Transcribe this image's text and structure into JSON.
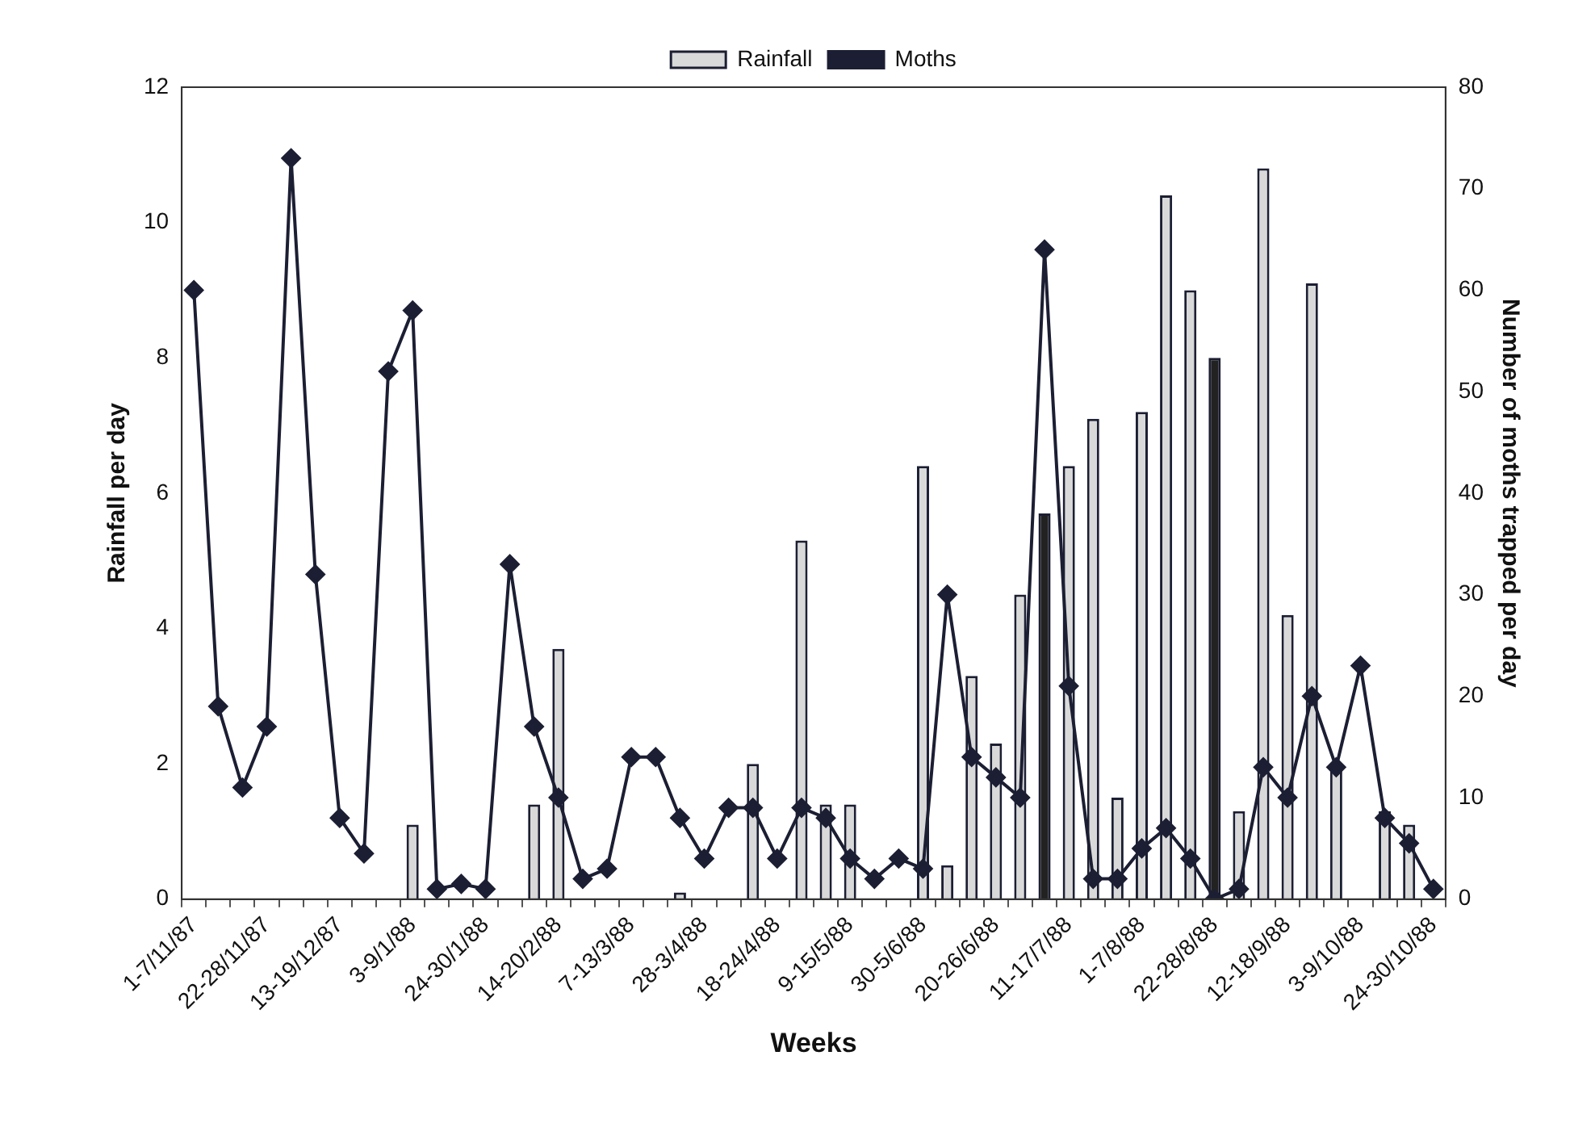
{
  "chart_data": {
    "type": "bar",
    "xlabel": "Weeks",
    "ylabel": "Rainfall per day",
    "y2label": "Number of moths trapped per day",
    "categories": [
      "1-7/11/87",
      null,
      null,
      "22-28/11/87",
      null,
      null,
      "13-19/12/87",
      null,
      null,
      "3-9/1/88",
      null,
      null,
      "24-30/1/88",
      null,
      null,
      "14-20/2/88",
      null,
      null,
      "7-13/3/88",
      null,
      null,
      "28-3/4/88",
      null,
      null,
      "18-24/4/88",
      null,
      null,
      "9-15/5/88",
      null,
      null,
      "30-5/6/88",
      null,
      null,
      "20-26/6/88",
      null,
      null,
      "11-17/7/88",
      null,
      null,
      "1-7/8/88",
      null,
      null,
      "22-28/8/88",
      null,
      null,
      "12-18/9/88",
      null,
      null,
      "3-9/10/88",
      null,
      null,
      "24-30/10/88"
    ],
    "series": [
      {
        "name": "Rainfall",
        "color": "#d9d9d9",
        "colors": [
          "#d9d9d9",
          "#d9d9d9",
          "#d9d9d9",
          "#d9d9d9",
          "#d9d9d9",
          "#d9d9d9",
          "#d9d9d9",
          "#d9d9d9",
          "#d9d9d9",
          "#d9d9d9",
          "#d9d9d9",
          "#d9d9d9",
          "#d9d9d9",
          "#d9d9d9",
          "#d9d9d9",
          "#d9d9d9",
          "#d9d9d9",
          "#d9d9d9",
          "#d9d9d9",
          "#d9d9d9",
          "#d9d9d9",
          "#d9d9d9",
          "#d9d9d9",
          "#d9d9d9",
          "#d9d9d9",
          "#d9d9d9",
          "#d9d9d9",
          "#d9d9d9",
          "#d9d9d9",
          "#d9d9d9",
          "#d9d9d9",
          "#d9d9d9",
          "#d9d9d9",
          "#d9d9d9",
          "#d9d9d9",
          "#222222",
          "#d9d9d9",
          "#d9d9d9",
          "#d9d9d9",
          "#d9d9d9",
          "#d9d9d9",
          "#d9d9d9",
          "#222222",
          "#d9d9d9",
          "#d9d9d9",
          "#d9d9d9",
          "#d9d9d9",
          "#d9d9d9",
          "#d9d9d9",
          "#d9d9d9",
          "#d9d9d9",
          "#d9d9d9"
        ],
        "values": [
          0,
          0,
          0,
          0,
          0,
          0,
          0,
          0,
          0,
          1.1,
          0,
          0,
          0,
          0,
          1.4,
          3.7,
          0,
          0,
          0,
          0,
          0.1,
          0,
          0,
          2.0,
          0,
          5.3,
          1.4,
          1.4,
          0,
          0,
          6.4,
          0.5,
          3.3,
          2.3,
          4.5,
          5.7,
          6.4,
          7.1,
          1.5,
          7.2,
          10.4,
          9.0,
          8.0,
          1.3,
          10.8,
          4.2,
          9.1,
          2.0,
          0,
          1.3,
          1.1,
          0
        ]
      },
      {
        "name": "Moths",
        "type": "line",
        "axis": "y2",
        "color": "#1c1f33",
        "values": [
          60,
          19,
          11,
          17,
          73,
          32,
          8,
          4.5,
          52,
          58,
          1,
          1.5,
          1,
          33,
          17,
          10,
          2,
          3,
          14,
          14,
          8,
          4,
          9,
          9,
          4,
          9,
          8,
          4,
          2,
          4,
          3,
          30,
          14,
          12,
          10,
          64,
          21,
          2,
          2,
          5,
          7,
          4,
          0,
          1,
          13,
          10,
          20,
          13,
          23,
          8,
          5.5,
          1
        ]
      }
    ],
    "ylim": [
      0,
      12
    ],
    "yticks": [
      0,
      2,
      4,
      6,
      8,
      10,
      12
    ],
    "y2lim": [
      0,
      80
    ],
    "y2ticks": [
      0,
      10,
      20,
      30,
      40,
      50,
      60,
      70,
      80
    ],
    "legend": "top",
    "grid": false,
    "marker": "diamond"
  }
}
